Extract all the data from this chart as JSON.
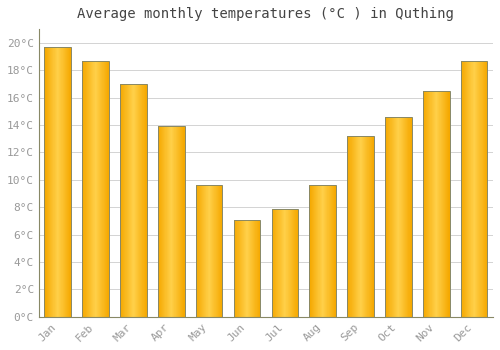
{
  "title": "Average monthly temperatures (°C ) in Quthing",
  "months": [
    "Jan",
    "Feb",
    "Mar",
    "Apr",
    "May",
    "Jun",
    "Jul",
    "Aug",
    "Sep",
    "Oct",
    "Nov",
    "Dec"
  ],
  "values": [
    19.7,
    18.7,
    17.0,
    13.9,
    9.6,
    7.1,
    7.9,
    9.6,
    13.2,
    14.6,
    16.5,
    18.7
  ],
  "bar_color_center": "#FFD04A",
  "bar_color_edge": "#F5A800",
  "bar_border_color": "#888866",
  "ylim": [
    0,
    21
  ],
  "yticks": [
    0,
    2,
    4,
    6,
    8,
    10,
    12,
    14,
    16,
    18,
    20
  ],
  "ytick_labels": [
    "0°C",
    "2°C",
    "4°C",
    "6°C",
    "8°C",
    "10°C",
    "12°C",
    "14°C",
    "16°C",
    "18°C",
    "20°C"
  ],
  "background_color": "#FFFFFF",
  "grid_color": "#CCCCCC",
  "title_fontsize": 10,
  "tick_fontsize": 8,
  "tick_color": "#999999",
  "title_color": "#444444"
}
